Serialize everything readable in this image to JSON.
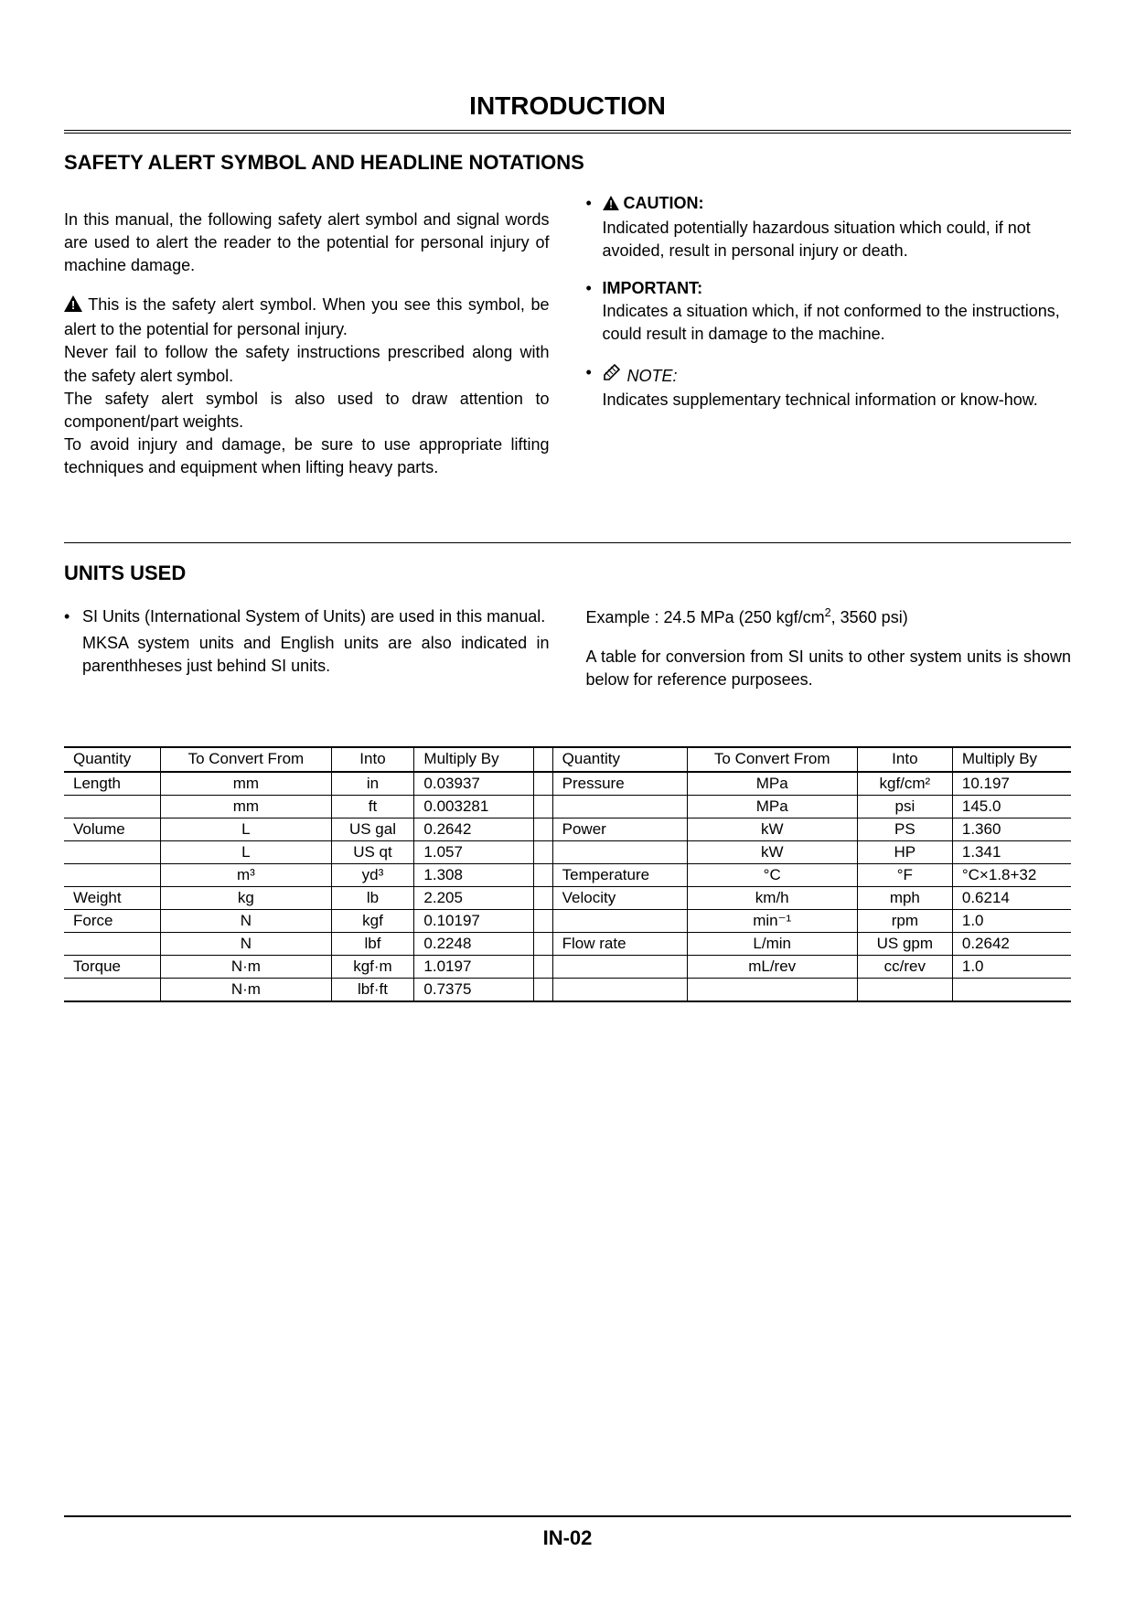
{
  "page_title": "INTRODUCTION",
  "page_number": "IN-02",
  "safety": {
    "heading": "SAFETY ALERT SYMBOL AND HEADLINE NOTATIONS",
    "intro": "In this manual, the following safety alert symbol and signal words are used to alert the reader to the potential for personal injury of machine damage.",
    "symbol_para1": "This is the safety alert symbol. When you see this symbol, be alert to the potential for personal injury.",
    "symbol_para2": "Never fail to follow the safety instructions prescribed along with the safety alert symbol.",
    "symbol_para3": "The safety alert symbol is also used to draw attention to component/part weights.",
    "symbol_para4": "To avoid injury and damage, be sure to use appropriate lifting techniques and equipment when lifting heavy parts.",
    "definitions": [
      {
        "head": "CAUTION:",
        "body": "Indicated potentially hazardous situation which could, if not avoided, result in personal injury or death."
      },
      {
        "head": "IMPORTANT:",
        "body": "Indicates a situation which, if not conformed to the instructions, could result in damage to the machine."
      },
      {
        "head": "NOTE:",
        "body": "Indicates supplementary technical information or know-how."
      }
    ]
  },
  "units": {
    "heading": "UNITS USED",
    "bullet_main": "SI Units (International System of Units) are used in this manual.",
    "bullet_sub": "MKSA system units and English units are also indicated in parenthheses just behind SI units.",
    "example_prefix": "Example : 24.5 MPa (250 kgf/cm",
    "example_suffix": ", 3560 psi)",
    "table_note": "A table for conversion from SI units to other system units is shown below for reference purposees."
  },
  "table": {
    "headers": {
      "qty": "Quantity",
      "from": "To Convert From",
      "into": "Into",
      "mult": "Multiply By"
    },
    "left_rows": [
      {
        "qty": "Length",
        "from": "mm",
        "into": "in",
        "mult": "0.03937"
      },
      {
        "qty": "",
        "from": "mm",
        "into": "ft",
        "mult": "0.003281"
      },
      {
        "qty": "Volume",
        "from": "L",
        "into": "US gal",
        "mult": "0.2642"
      },
      {
        "qty": "",
        "from": "L",
        "into": "US qt",
        "mult": "1.057"
      },
      {
        "qty": "",
        "from": "m³",
        "into": "yd³",
        "mult": "1.308"
      },
      {
        "qty": "Weight",
        "from": "kg",
        "into": "lb",
        "mult": "2.205"
      },
      {
        "qty": "Force",
        "from": "N",
        "into": "kgf",
        "mult": "0.10197"
      },
      {
        "qty": "",
        "from": "N",
        "into": "lbf",
        "mult": "0.2248"
      },
      {
        "qty": "Torque",
        "from": "N·m",
        "into": "kgf·m",
        "mult": "1.0197"
      },
      {
        "qty": "",
        "from": "N·m",
        "into": "lbf·ft",
        "mult": "0.7375"
      }
    ],
    "right_rows": [
      {
        "qty": "Pressure",
        "from": "MPa",
        "into": "kgf/cm²",
        "mult": "10.197"
      },
      {
        "qty": "",
        "from": "MPa",
        "into": "psi",
        "mult": "145.0"
      },
      {
        "qty": "Power",
        "from": "kW",
        "into": "PS",
        "mult": "1.360"
      },
      {
        "qty": "",
        "from": "kW",
        "into": "HP",
        "mult": "1.341"
      },
      {
        "qty": "Temperature",
        "from": "°C",
        "into": "°F",
        "mult": "°C×1.8+32"
      },
      {
        "qty": "Velocity",
        "from": "km/h",
        "into": "mph",
        "mult": "0.6214"
      },
      {
        "qty": "",
        "from": "min⁻¹",
        "into": "rpm",
        "mult": "1.0"
      },
      {
        "qty": "Flow rate",
        "from": "L/min",
        "into": "US gpm",
        "mult": "0.2642"
      },
      {
        "qty": "",
        "from": "mL/rev",
        "into": "cc/rev",
        "mult": "1.0"
      },
      {
        "qty": "",
        "from": "",
        "into": "",
        "mult": ""
      }
    ]
  }
}
